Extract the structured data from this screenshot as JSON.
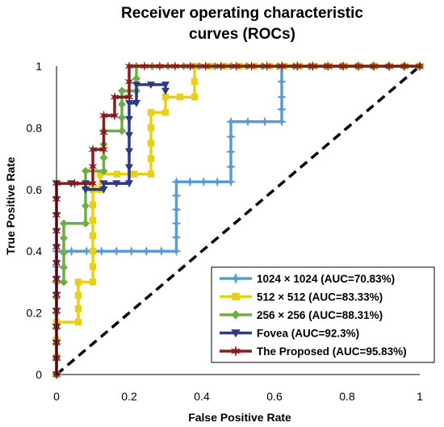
{
  "chart_data": {
    "type": "line",
    "title": [
      "Receiver operating characteristic",
      "curves (ROCs)"
    ],
    "xlabel": "False Positive Rate",
    "ylabel": "True Positive Rate",
    "xlim": [
      0,
      1
    ],
    "ylim": [
      0,
      1
    ],
    "x_ticks": [
      0,
      0.2,
      0.4,
      0.6,
      0.8,
      1
    ],
    "y_ticks": [
      0,
      0.2,
      0.4,
      0.6,
      0.8,
      1
    ],
    "x_tick_labels": [
      "0",
      "0.2",
      "0.4",
      "0.6",
      "0.8",
      "1"
    ],
    "y_tick_labels": [
      "0",
      "0.2",
      "0.4",
      "0.6",
      "0.8",
      "1"
    ],
    "grid": false,
    "legend_position": "bottom-right",
    "diagonal": {
      "x": [
        0,
        1
      ],
      "y": [
        0,
        1
      ],
      "color": "#000000",
      "style": "dashed"
    },
    "series": [
      {
        "name": "1024 × 1024 (AUC=70.83%)",
        "color": "#5b9bd5",
        "marker": "star4",
        "x": [
          0,
          0,
          0,
          0.33,
          0.33,
          0.48,
          0.48,
          0.62,
          0.62,
          0.62,
          1
        ],
        "y": [
          0,
          0.2,
          0.4,
          0.4,
          0.625,
          0.625,
          0.82,
          0.82,
          0.9,
          1,
          1
        ]
      },
      {
        "name": "512 × 512 (AUC=83.33%)",
        "color": "#e6d118",
        "marker": "square",
        "x": [
          0,
          0,
          0.06,
          0.06,
          0.1,
          0.1,
          0.12,
          0.12,
          0.26,
          0.26,
          0.3,
          0.3,
          0.38,
          0.38,
          1
        ],
        "y": [
          0,
          0.17,
          0.17,
          0.3,
          0.3,
          0.6,
          0.6,
          0.65,
          0.65,
          0.85,
          0.85,
          0.9,
          0.9,
          1,
          1
        ]
      },
      {
        "name": "256 × 256 (AUC=88.31%)",
        "color": "#70ad47",
        "marker": "diamond",
        "x": [
          0,
          0,
          0.02,
          0.02,
          0.08,
          0.08,
          0.13,
          0.13,
          0.18,
          0.18,
          0.22,
          0.22,
          1
        ],
        "y": [
          0,
          0.3,
          0.3,
          0.49,
          0.49,
          0.66,
          0.66,
          0.79,
          0.79,
          0.92,
          0.92,
          1,
          1
        ]
      },
      {
        "name": "Fovea (AUC=92.3%)",
        "color": "#2e3a87",
        "marker": "triangle-down",
        "x": [
          0,
          0,
          0.08,
          0.08,
          0.13,
          0.13,
          0.2,
          0.2,
          0.22,
          0.22,
          0.3,
          0.3
        ],
        "y": [
          0,
          0.62,
          0.62,
          0.6,
          0.6,
          0.62,
          0.62,
          0.88,
          0.88,
          0.94,
          0.94,
          0.92
        ]
      },
      {
        "name": "The Proposed (AUC=95.83%)",
        "color": "#8b1c1c",
        "marker": "star6",
        "x": [
          0,
          0,
          0.1,
          0.1,
          0.13,
          0.13,
          0.16,
          0.16,
          0.2,
          0.2,
          1
        ],
        "y": [
          0,
          0.62,
          0.62,
          0.73,
          0.73,
          0.84,
          0.84,
          0.9,
          0.9,
          1,
          1
        ]
      }
    ]
  }
}
